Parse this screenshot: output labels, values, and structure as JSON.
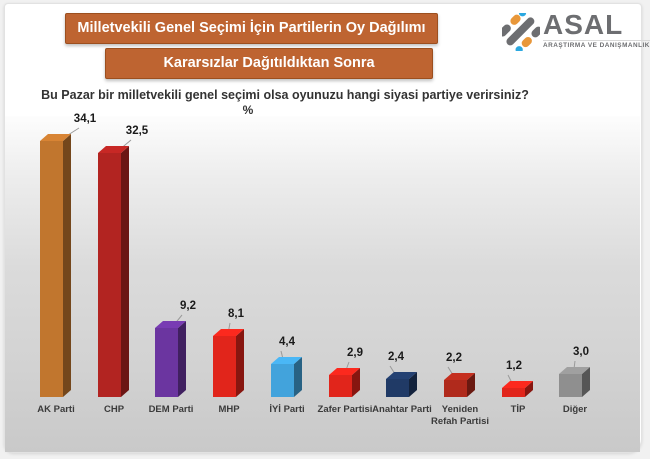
{
  "header": {
    "title": "Milletvekili Genel Seçimi İçin Partilerin Oy Dağılımı",
    "subtitle": "Kararsızlar Dağıtıldıktan Sonra",
    "banner_color": "#BE6431",
    "banner_text_color": "#FFFFFF"
  },
  "logo": {
    "name": "ASAL",
    "tagline": "ARAŞTIRMA VE DANIŞMANLIK",
    "colors": {
      "gray": "#6D6E71",
      "orange": "#E8973A",
      "blue": "#2BA8E0"
    }
  },
  "question": "Bu Pazar bir milletvekili genel seçimi olsa oyunuzu hangi siyasi partiye verirsiniz?",
  "unit_label": "%",
  "chart_data": {
    "type": "bar",
    "style": "3d-column",
    "title": "Milletvekili Genel Seçimi İçin Partilerin Oy Dağılımı",
    "subtitle": "Kararsızlar Dağıtıldıktan Sonra",
    "unit": "%",
    "grid": false,
    "legend": false,
    "ylim": [
      0,
      36
    ],
    "categories": [
      "AK Parti",
      "CHP",
      "DEM Parti",
      "MHP",
      "İYİ Parti",
      "Zafer Partisi",
      "Anahtar Parti",
      "Yeniden Refah Partisi",
      "TİP",
      "Diğer"
    ],
    "values": [
      34.1,
      32.5,
      9.2,
      8.1,
      4.4,
      2.9,
      2.4,
      2.2,
      1.2,
      3.0
    ],
    "value_labels": [
      "34,1",
      "32,5",
      "9,2",
      "8,1",
      "4,4",
      "2,9",
      "2,4",
      "2,2",
      "1,2",
      "3,0"
    ],
    "bars": [
      {
        "id": "akp",
        "label": "AK Parti",
        "display_label": "AK Parti",
        "value": 34.1,
        "value_label": "34,1",
        "color": "#C1762E"
      },
      {
        "id": "chp",
        "label": "CHP",
        "display_label": "CHP",
        "value": 32.5,
        "value_label": "32,5",
        "color": "#B22421"
      },
      {
        "id": "dem",
        "label": "DEM Parti",
        "display_label": "DEM Parti",
        "value": 9.2,
        "value_label": "9,2",
        "color": "#6B35A0"
      },
      {
        "id": "mhp",
        "label": "MHP",
        "display_label": "MHP",
        "value": 8.1,
        "value_label": "8,1",
        "color": "#E1251B"
      },
      {
        "id": "iyi",
        "label": "İYİ Parti",
        "display_label": "İYİ Parti",
        "value": 4.4,
        "value_label": "4,4",
        "color": "#42A3DC"
      },
      {
        "id": "zafer",
        "label": "Zafer Partisi",
        "display_label": "Zafer Partisi",
        "value": 2.9,
        "value_label": "2,9",
        "color": "#E1251B"
      },
      {
        "id": "anahtar",
        "label": "Anahtar Parti",
        "display_label": "Anahtar Parti",
        "value": 2.4,
        "value_label": "2,4",
        "color": "#203A66"
      },
      {
        "id": "yrp",
        "label": "Yeniden Refah Partisi",
        "display_label": "Yeniden\nRefah Partisi",
        "value": 2.2,
        "value_label": "2,2",
        "color": "#B02A1C"
      },
      {
        "id": "tip",
        "label": "TİP",
        "display_label": "TİP",
        "value": 1.2,
        "value_label": "1,2",
        "color": "#E1251B"
      },
      {
        "id": "diger",
        "label": "Diğer",
        "display_label": "Diğer",
        "value": 3.0,
        "value_label": "3,0",
        "color": "#8F8F8F"
      }
    ]
  }
}
